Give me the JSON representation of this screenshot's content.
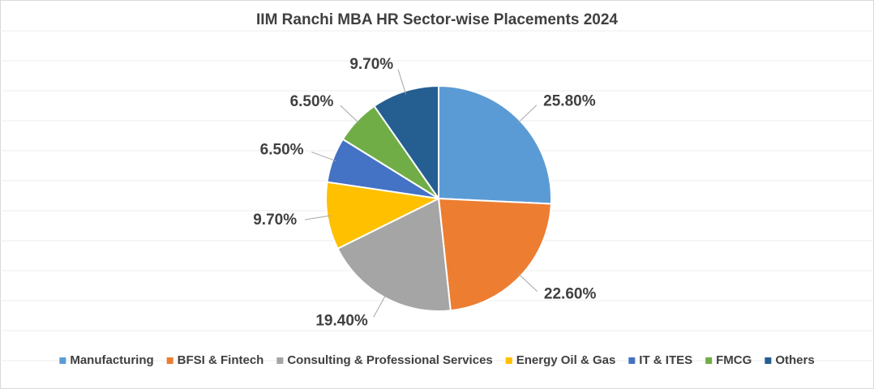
{
  "chart_data": {
    "type": "pie",
    "title": "IIM Ranchi MBA HR Sector-wise Placements 2024",
    "categories": [
      "Manufacturing",
      "BFSI & Fintech",
      "Consulting & Professional Services",
      "Energy Oil & Gas",
      "IT & ITES",
      "FMCG",
      "Others"
    ],
    "values": [
      25.8,
      22.6,
      19.4,
      9.7,
      6.5,
      6.5,
      9.7
    ],
    "value_labels": [
      "25.80%",
      "22.60%",
      "19.40%",
      "9.70%",
      "6.50%",
      "6.50%",
      "9.70%"
    ],
    "colors": [
      "#5b9bd5",
      "#ed7d31",
      "#a5a5a5",
      "#ffc000",
      "#4472c4",
      "#70ad47",
      "#255e91"
    ],
    "legend": "bottom"
  }
}
